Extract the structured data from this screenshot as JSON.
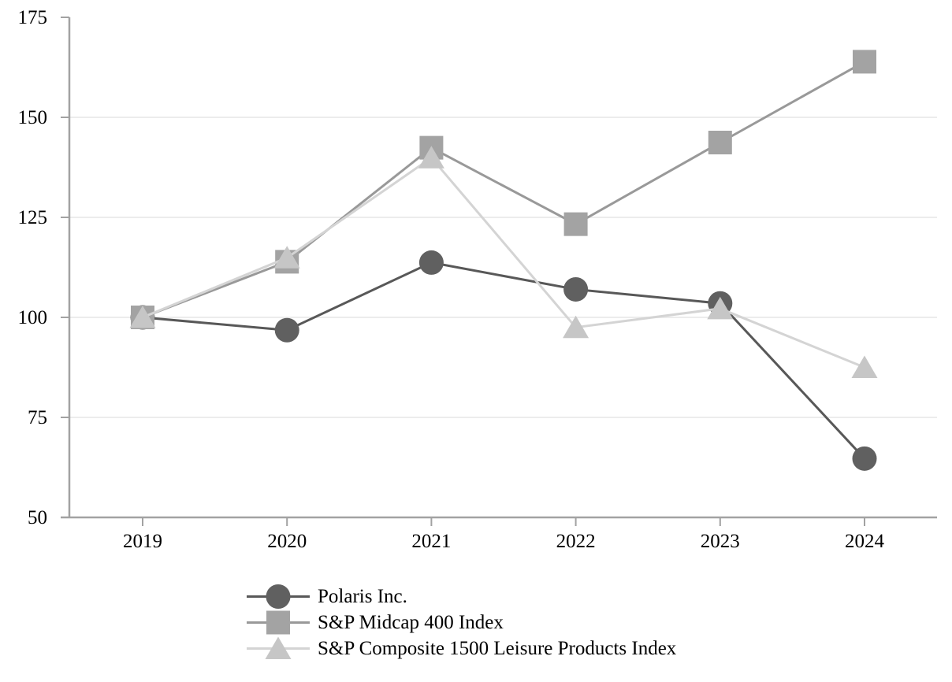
{
  "chart_data": {
    "type": "line",
    "x": [
      "2019",
      "2020",
      "2021",
      "2022",
      "2023",
      "2024"
    ],
    "series": [
      {
        "id": "polaris",
        "name": "Polaris Inc.",
        "marker": "circle",
        "color": "#606060",
        "line_color": "#585858",
        "values": [
          100,
          96.8,
          113.7,
          107.0,
          103.5,
          64.7
        ]
      },
      {
        "id": "sp-midcap-400",
        "name": "S&P Midcap 400 Index",
        "marker": "square",
        "color": "#a3a3a3",
        "line_color": "#999999",
        "values": [
          100,
          113.9,
          142.4,
          123.3,
          143.7,
          163.9
        ]
      },
      {
        "id": "sp-composite-1500-leisure",
        "name": "S&P Composite 1500 Leisure Products Index",
        "marker": "triangle",
        "color": "#c6c6c6",
        "line_color": "#d4d4d4",
        "values": [
          100,
          114.9,
          139.9,
          97.5,
          102.2,
          87.5
        ]
      }
    ],
    "ylim": [
      50,
      175
    ],
    "yticks": [
      50,
      75,
      100,
      125,
      150,
      175
    ],
    "grid": "horizontal-inner",
    "legend_position": "bottom-left",
    "colors": {
      "axis": "#a2a2a2",
      "gridline": "#ececec",
      "text": "#000000",
      "background": "#ffffff"
    }
  }
}
